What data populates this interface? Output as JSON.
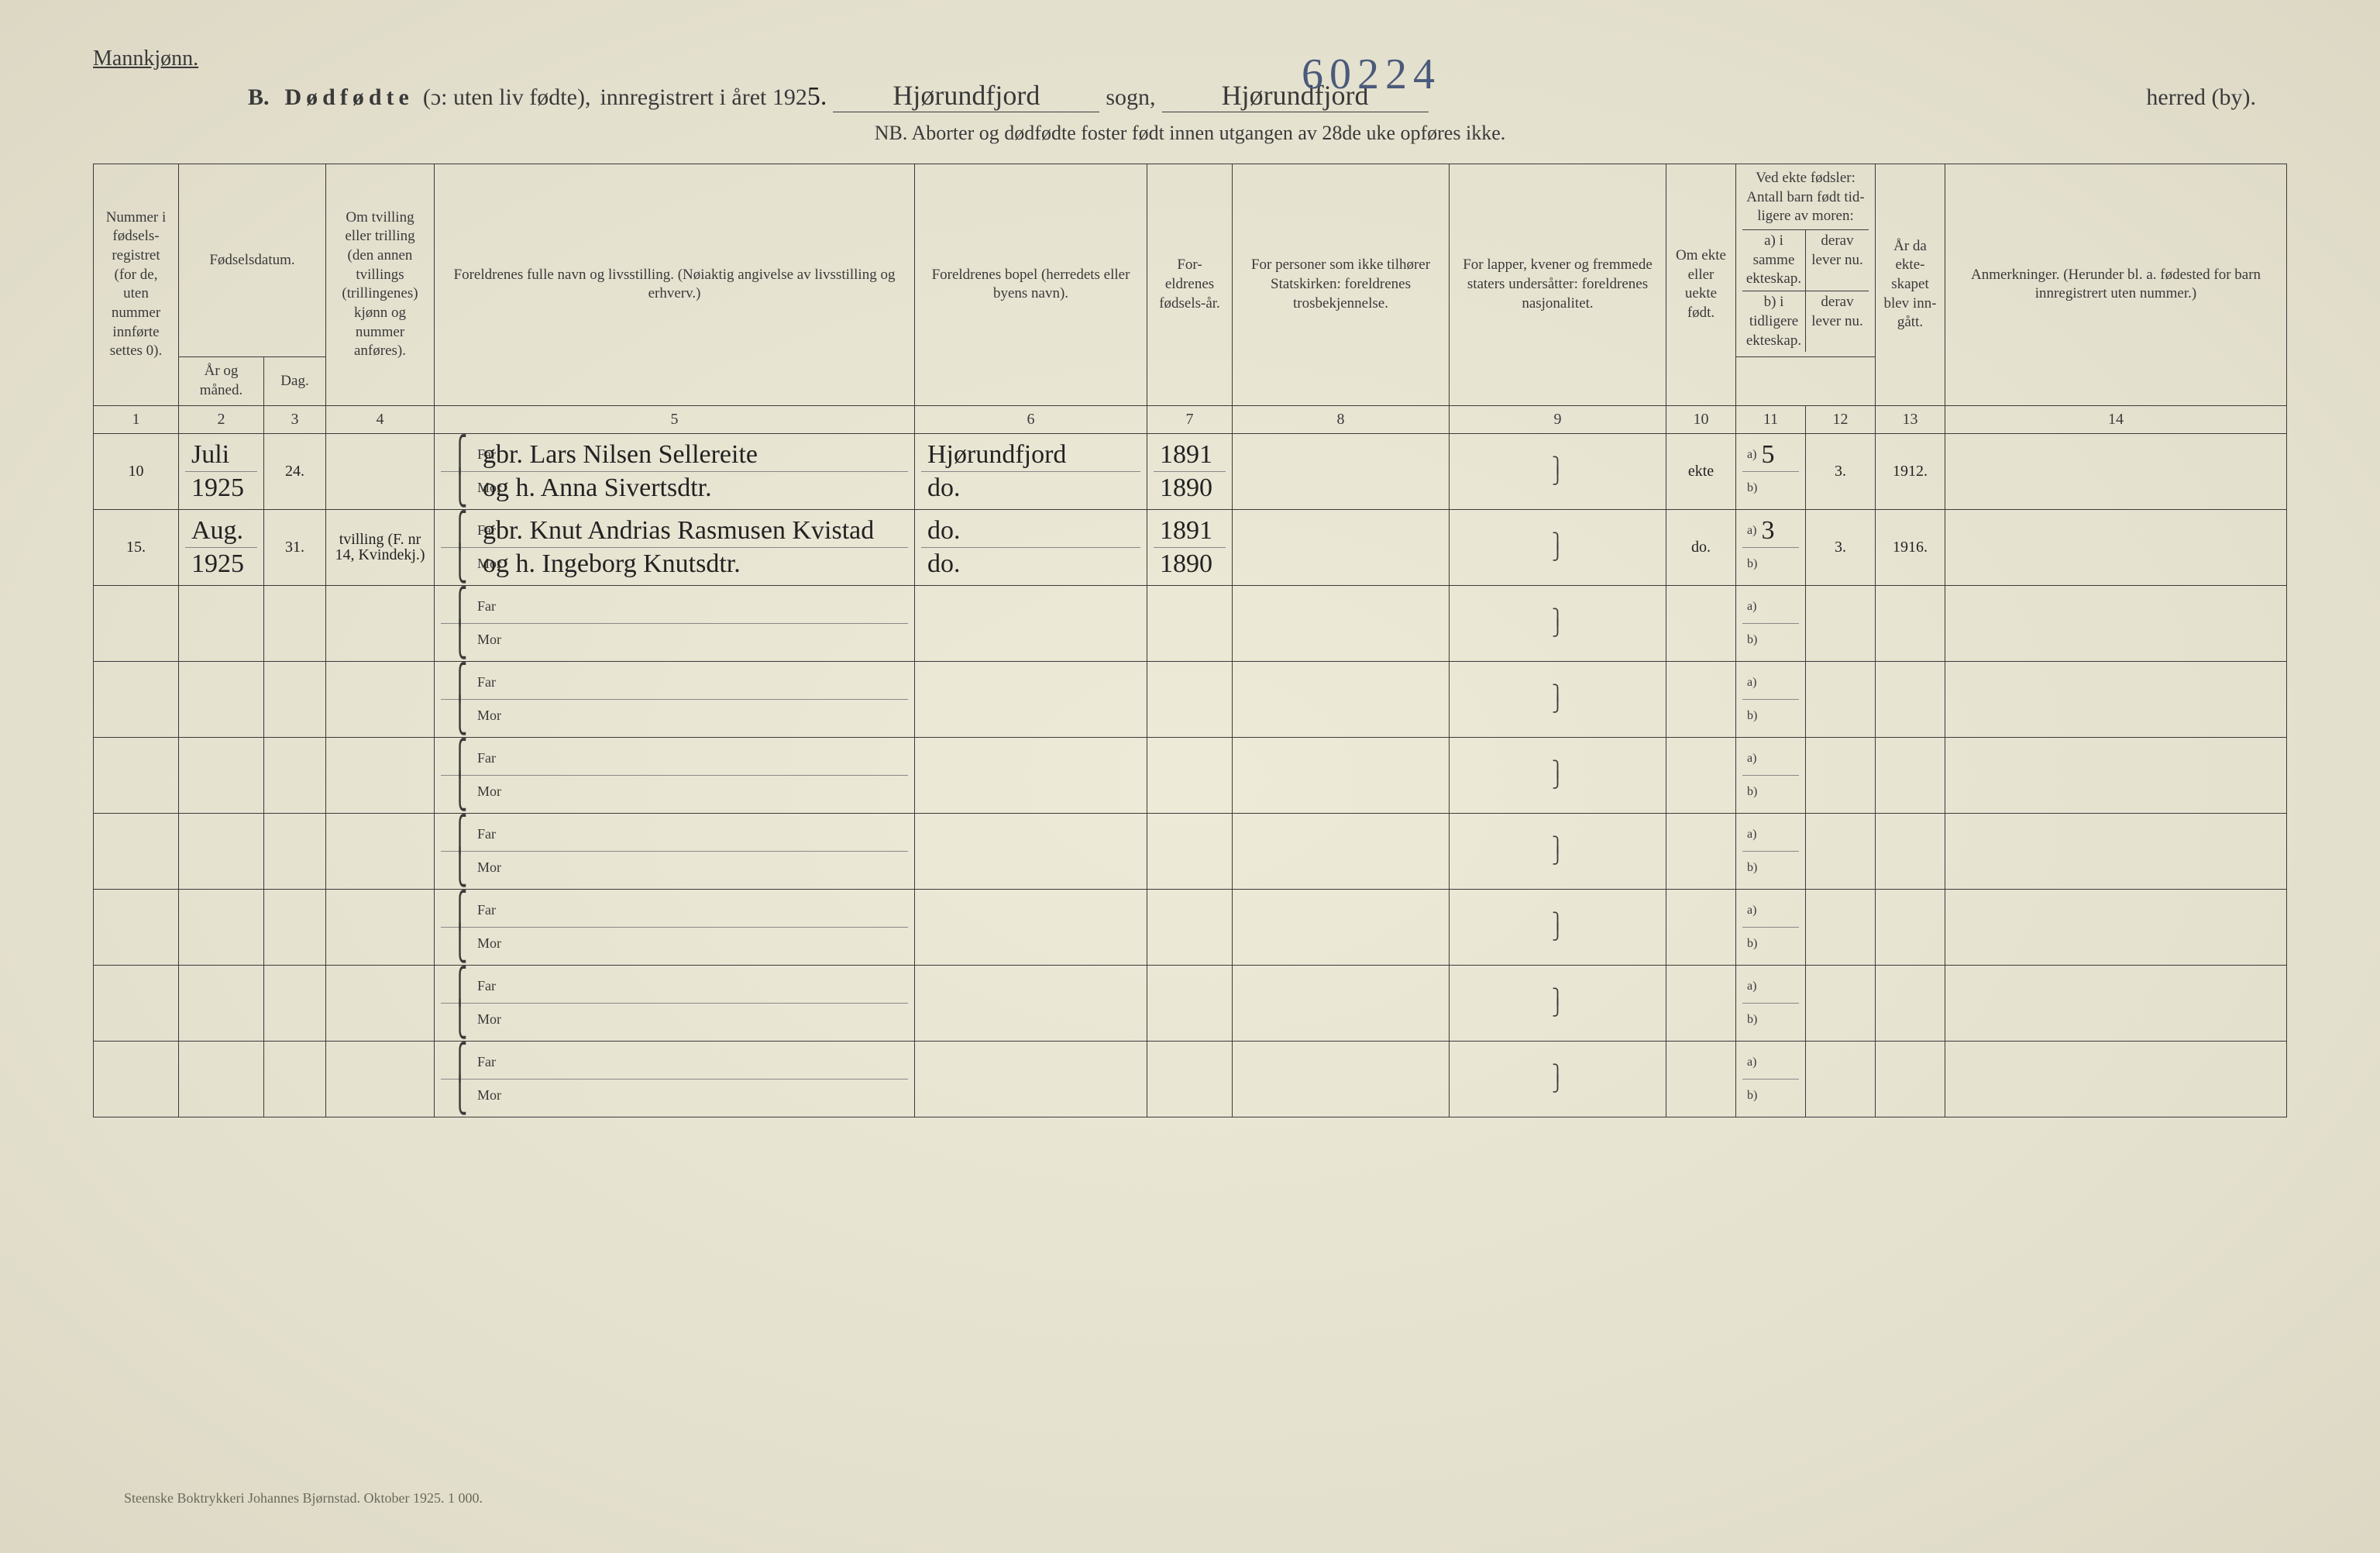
{
  "gender_label": "Mannkjønn.",
  "title_prefix": "B.",
  "title_main": "Dødfødte",
  "title_paren": "(ɔ: uten liv fødte),",
  "title_registered": "innregistrert i året 192",
  "year_suffix": "5.",
  "sogn_hw": "Hjørundfjord",
  "sogn_label": "sogn,",
  "herred_hw": "Hjørundfjord",
  "herred_label": "herred (by).",
  "big_number_hw": "60224",
  "subhead": "NB.  Aborter og dødfødte foster født innen utgangen av 28de uke opføres ikke.",
  "columns": {
    "c1": "Nummer i fødsels-registret (for de, uten nummer innførte settes 0).",
    "c2_group": "Fødselsdatum.",
    "c2a": "År og måned.",
    "c2b": "Dag.",
    "c4": "Om tvilling eller trilling (den annen tvillings (trillingenes) kjønn og nummer anføres).",
    "c5": "Foreldrenes fulle navn og livsstilling. (Nøiaktig angivelse av livsstilling og erhverv.)",
    "c6": "Foreldrenes bopel (herredets eller byens navn).",
    "c7": "For-eldrenes fødsels-år.",
    "c8": "For personer som ikke tilhører Statskirken: foreldrenes trosbekjennelse.",
    "c9": "For lapper, kvener og fremmede staters undersåtter: foreldrenes nasjonalitet.",
    "c10": "Om ekte eller uekte født.",
    "c11_group": "Ved ekte fødsler: Antall barn født tid-ligere av moren:",
    "c11a": "a) i samme ekteskap.",
    "c11b": "b) i tidligere ekteskap.",
    "c12": "derav lever nu.",
    "c13": "År da ekte-skapet blev inn-gått.",
    "c14": "Anmerkninger. (Herunder bl. a. fødested for barn innregistrert uten nummer.)"
  },
  "colnums": [
    "1",
    "2",
    "3",
    "4",
    "5",
    "6",
    "7",
    "8",
    "9",
    "10",
    "11",
    "12",
    "13",
    "14"
  ],
  "far_label": "Far",
  "mor_label": "Mor",
  "a_label": "a)",
  "b_label": "b)",
  "entries": [
    {
      "num": "10",
      "month": "Juli",
      "year": "1925",
      "day": "24.",
      "twin": "",
      "far": "gbr. Lars Nilsen Sellereite",
      "mor": "og h. Anna Sivertsdtr.",
      "bopel_far": "Hjørundfjord",
      "bopel_mor": "do.",
      "fyear_far": "1891",
      "fyear_mor": "1890",
      "c8": "",
      "c9": "",
      "ekte": "ekte",
      "a_val": "5",
      "b_val": "",
      "lever": "3.",
      "marriage_year": "1912."
    },
    {
      "num": "15.",
      "month": "Aug.",
      "year": "1925",
      "day": "31.",
      "twin": "tvilling (F. nr 14, Kvindekj.)",
      "far": "gbr. Knut Andrias Rasmusen Kvistad",
      "mor": "og h. Ingeborg Knutsdtr.",
      "bopel_far": "do.",
      "bopel_mor": "do.",
      "fyear_far": "1891",
      "fyear_mor": "1890",
      "c8": "",
      "c9": "",
      "ekte": "do.",
      "a_val": "3",
      "b_val": "",
      "lever": "3.",
      "marriage_year": "1916."
    }
  ],
  "empty_rows": 7,
  "footer": "Steenske Boktrykkeri Johannes Bjørnstad.  Oktober 1925.  1 000."
}
